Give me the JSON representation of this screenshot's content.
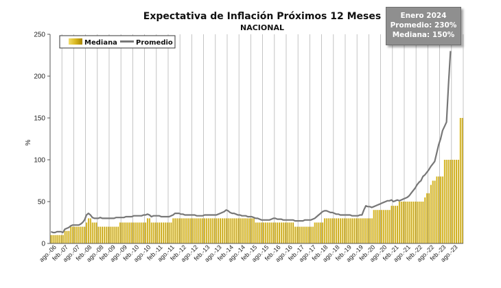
{
  "chart_data": {
    "type": "bar",
    "title": "Expectativa de Inflación Próximos 12 Meses",
    "subtitle": "NACIONAL",
    "ylabel": "%",
    "ylim": [
      0,
      250
    ],
    "yticks": [
      0,
      50,
      100,
      150,
      200,
      250
    ],
    "grid": "vertical",
    "legend_position": "top-left",
    "x_tick_labels": [
      "ago.-06",
      "feb.-07",
      "ago.-07",
      "feb.-08",
      "ago.-08",
      "feb.-09",
      "ago.-09",
      "feb.-10",
      "ago.-10",
      "feb.-11",
      "ago.-11",
      "feb.-12",
      "ago.-12",
      "feb.-13",
      "ago.-13",
      "feb.-14",
      "ago.-14",
      "feb.-15",
      "ago.-15",
      "feb.-16",
      "ago.-16",
      "feb.-17",
      "ago.-17",
      "feb.-18",
      "ago.-18",
      "feb.-19",
      "ago.-19",
      "feb.-20",
      "ago.-20",
      "feb.-21",
      "ago.-21",
      "feb.-22",
      "ago.-22",
      "feb.-23",
      "ago.-23"
    ],
    "series": [
      {
        "name": "Mediana",
        "kind": "bar",
        "color": "#c9a400",
        "values": [
          10,
          10,
          10,
          10,
          10,
          10,
          10,
          15,
          15,
          15,
          20,
          20,
          20,
          20,
          20,
          20,
          20,
          20,
          25,
          30,
          30,
          25,
          25,
          25,
          20,
          20,
          20,
          20,
          20,
          20,
          20,
          20,
          20,
          20,
          20,
          25,
          25,
          25,
          25,
          25,
          25,
          25,
          25,
          25,
          25,
          25,
          25,
          25,
          25,
          30,
          30,
          25,
          25,
          25,
          25,
          25,
          25,
          25,
          25,
          25,
          25,
          25,
          30,
          30,
          30,
          30,
          30,
          30,
          30,
          30,
          30,
          30,
          30,
          30,
          30,
          30,
          30,
          30,
          30,
          30,
          30,
          30,
          30,
          30,
          30,
          30,
          30,
          30,
          30,
          30,
          30,
          30,
          30,
          30,
          30,
          30,
          30,
          30,
          30,
          30,
          30,
          30,
          30,
          30,
          25,
          25,
          25,
          25,
          25,
          25,
          25,
          25,
          25,
          25,
          25,
          25,
          25,
          25,
          25,
          25,
          25,
          25,
          25,
          25,
          20,
          20,
          20,
          20,
          20,
          20,
          20,
          20,
          20,
          20,
          25,
          25,
          25,
          25,
          25,
          30,
          30,
          30,
          30,
          30,
          30,
          30,
          30,
          30,
          30,
          30,
          30,
          30,
          30,
          30,
          30,
          30,
          30,
          30,
          30,
          30,
          30,
          30,
          30,
          30,
          40,
          40,
          40,
          40,
          40,
          40,
          40,
          40,
          40,
          45,
          45,
          45,
          45,
          50,
          50,
          50,
          50,
          50,
          50,
          50,
          50,
          50,
          50,
          50,
          50,
          50,
          55,
          60,
          60,
          70,
          75,
          75,
          80,
          80,
          80,
          80,
          100,
          100,
          100,
          100,
          100,
          100,
          100,
          100,
          150,
          150
        ]
      },
      {
        "name": "Promedio",
        "kind": "line",
        "color": "#777777",
        "values": [
          14,
          13,
          13,
          14,
          14,
          14,
          13,
          17,
          18,
          19,
          21,
          22,
          22,
          22,
          22,
          23,
          25,
          28,
          34,
          36,
          34,
          31,
          30,
          30,
          30,
          31,
          30,
          30,
          30,
          30,
          30,
          30,
          30,
          31,
          31,
          31,
          31,
          31,
          32,
          32,
          32,
          32,
          33,
          33,
          33,
          33,
          33,
          34,
          34,
          35,
          34,
          32,
          33,
          33,
          33,
          33,
          32,
          32,
          32,
          32,
          32,
          33,
          34,
          36,
          36,
          36,
          35,
          35,
          34,
          34,
          34,
          34,
          34,
          34,
          33,
          33,
          33,
          33,
          34,
          34,
          34,
          34,
          34,
          34,
          34,
          35,
          36,
          37,
          38,
          40,
          39,
          37,
          36,
          36,
          35,
          34,
          34,
          33,
          33,
          33,
          32,
          32,
          32,
          31,
          30,
          30,
          29,
          28,
          28,
          28,
          28,
          28,
          29,
          30,
          30,
          29,
          29,
          29,
          28,
          28,
          28,
          28,
          28,
          28,
          27,
          27,
          27,
          27,
          27,
          28,
          28,
          28,
          28,
          29,
          30,
          32,
          34,
          36,
          38,
          39,
          39,
          38,
          37,
          37,
          36,
          35,
          35,
          34,
          34,
          34,
          34,
          34,
          34,
          33,
          33,
          33,
          33,
          34,
          34,
          40,
          45,
          44,
          44,
          43,
          44,
          45,
          46,
          47,
          48,
          49,
          50,
          51,
          51,
          52,
          50,
          51,
          52,
          51,
          52,
          53,
          54,
          55,
          57,
          60,
          63,
          66,
          70,
          73,
          75,
          80,
          82,
          85,
          88,
          92,
          95,
          98,
          108,
          118,
          125,
          135,
          140,
          145,
          190,
          230
        ]
      }
    ]
  },
  "legend": {
    "mediana_label": "Mediana",
    "promedio_label": "Promedio"
  },
  "info_box": {
    "line1": "Enero 2024",
    "line2": "Promedio: 230%",
    "line3": "Mediana: 150%"
  },
  "colors": {
    "bar_fill": "#c9a400",
    "bar_highlight": "#f3dc6a",
    "line": "#777777",
    "gridline": "#b5b5b5",
    "axis": "#555555",
    "info_box_bg": "#8f8f8f"
  }
}
